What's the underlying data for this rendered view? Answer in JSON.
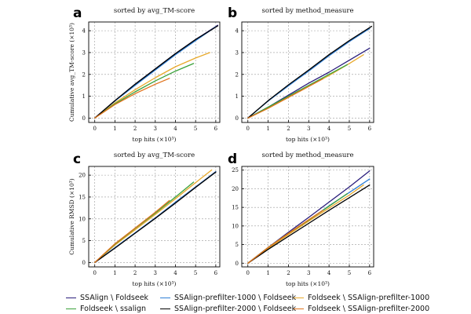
{
  "figure": {
    "legend": [
      {
        "name": "SSAlign \\ Foldseek",
        "color": "#2a1e7c"
      },
      {
        "name": "SSAlign-prefilter-1000 \\ Foldseek",
        "color": "#2f7fd6"
      },
      {
        "name": "Foldseek \\ SSAlign-prefilter-1000",
        "color": "#e8a92b"
      },
      {
        "name": "Foldseek \\ ssalign",
        "color": "#3aa13a"
      },
      {
        "name": "SSAlign-prefilter-2000 \\ Foldseek",
        "color": "#000000"
      },
      {
        "name": "Foldseek \\ SSAlign-prefilter-2000",
        "color": "#e0731c"
      }
    ]
  },
  "chart_data": [
    {
      "panel": "a",
      "type": "line",
      "title": "sorted by avg_TM-score",
      "xlabel": "top hits (×10³)",
      "ylabel": "Cumulative avg_TM-score (×10³)",
      "xlim": [
        -0.3,
        6.2
      ],
      "ylim": [
        -0.2,
        4.4
      ],
      "xticks": [
        0,
        1,
        2,
        3,
        4,
        5,
        6
      ],
      "yticks": [
        0,
        1,
        2,
        3,
        4
      ],
      "series": [
        {
          "name": "SSAlign \\ Foldseek",
          "color": "#2a1e7c",
          "x": [
            0,
            1,
            2,
            3,
            4,
            5,
            6.1
          ],
          "y": [
            0,
            0.8,
            1.55,
            2.25,
            2.95,
            3.6,
            4.25
          ]
        },
        {
          "name": "SSAlign-prefilter-1000 \\ Foldseek",
          "color": "#2f7fd6",
          "x": [
            0,
            1,
            2,
            3,
            4,
            5,
            6.0
          ],
          "y": [
            0,
            0.78,
            1.5,
            2.2,
            2.9,
            3.55,
            4.18
          ]
        },
        {
          "name": "Foldseek \\ SSAlign-prefilter-1000",
          "color": "#e8a92b",
          "x": [
            0,
            1,
            2,
            3,
            4,
            5,
            5.7
          ],
          "y": [
            0,
            0.7,
            1.3,
            1.85,
            2.35,
            2.75,
            3.0
          ]
        },
        {
          "name": "Foldseek \\ ssalign",
          "color": "#3aa13a",
          "x": [
            0,
            1,
            2,
            3,
            4,
            4.9
          ],
          "y": [
            0,
            0.65,
            1.2,
            1.7,
            2.15,
            2.5
          ]
        },
        {
          "name": "SSAlign-prefilter-2000 \\ Foldseek",
          "color": "#000000",
          "x": [
            0,
            1,
            2,
            3,
            4,
            5,
            6.1
          ],
          "y": [
            0,
            0.8,
            1.55,
            2.25,
            2.95,
            3.6,
            4.22
          ]
        },
        {
          "name": "Foldseek \\ SSAlign-prefilter-2000",
          "color": "#e0731c",
          "x": [
            0,
            1,
            2,
            3,
            3.7
          ],
          "y": [
            0,
            0.62,
            1.12,
            1.55,
            1.82
          ]
        }
      ]
    },
    {
      "panel": "b",
      "type": "line",
      "title": "sorted by method_measure",
      "xlabel": "top hits (×10³)",
      "ylabel": "",
      "xlim": [
        -0.3,
        6.2
      ],
      "ylim": [
        -0.2,
        4.4
      ],
      "xticks": [
        0,
        1,
        2,
        3,
        4,
        5,
        6
      ],
      "yticks": [
        0,
        1,
        2,
        3,
        4
      ],
      "series": [
        {
          "name": "SSAlign \\ Foldseek",
          "color": "#2a1e7c",
          "x": [
            0,
            1,
            2,
            3,
            4,
            5,
            6.0
          ],
          "y": [
            0,
            0.5,
            1.05,
            1.6,
            2.1,
            2.65,
            3.2
          ]
        },
        {
          "name": "SSAlign-prefilter-1000 \\ Foldseek",
          "color": "#2f7fd6",
          "x": [
            0,
            1,
            2,
            3,
            4,
            5,
            6.0
          ],
          "y": [
            0,
            0.78,
            1.48,
            2.15,
            2.85,
            3.5,
            4.1
          ]
        },
        {
          "name": "Foldseek \\ SSAlign-prefilter-1000",
          "color": "#e8a92b",
          "x": [
            0,
            1,
            2,
            3,
            4,
            5,
            5.7
          ],
          "y": [
            0,
            0.45,
            0.95,
            1.45,
            1.95,
            2.5,
            2.9
          ]
        },
        {
          "name": "Foldseek \\ ssalign",
          "color": "#3aa13a",
          "x": [
            0,
            1,
            2,
            3,
            4,
            4.9
          ],
          "y": [
            0,
            0.5,
            1.0,
            1.5,
            2.0,
            2.45
          ]
        },
        {
          "name": "SSAlign-prefilter-2000 \\ Foldseek",
          "color": "#000000",
          "x": [
            0,
            1,
            2,
            3,
            4,
            5,
            6.1
          ],
          "y": [
            0,
            0.8,
            1.52,
            2.2,
            2.9,
            3.55,
            4.2
          ]
        },
        {
          "name": "Foldseek \\ SSAlign-prefilter-2000",
          "color": "#e0731c",
          "x": [
            0,
            1,
            2,
            3,
            3.7
          ],
          "y": [
            0,
            0.45,
            0.95,
            1.45,
            1.8
          ]
        }
      ]
    },
    {
      "panel": "c",
      "type": "line",
      "title": "sorted by avg_TM-score",
      "xlabel": "top hits (×10³)",
      "ylabel": "Cumulative RMSD (×10³)",
      "xlim": [
        -0.3,
        6.2
      ],
      "ylim": [
        -1,
        22
      ],
      "xticks": [
        0,
        1,
        2,
        3,
        4,
        5,
        6
      ],
      "yticks": [
        0,
        5,
        10,
        15,
        20
      ],
      "series": [
        {
          "name": "SSAlign \\ Foldseek",
          "color": "#2a1e7c",
          "x": [
            0,
            1,
            2,
            3,
            4,
            5,
            6.0
          ],
          "y": [
            0,
            3.4,
            6.8,
            10.2,
            13.8,
            17.3,
            20.8
          ]
        },
        {
          "name": "SSAlign-prefilter-1000 \\ Foldseek",
          "color": "#2f7fd6",
          "x": [
            0,
            1,
            2,
            3,
            4,
            5,
            6.0
          ],
          "y": [
            0,
            3.4,
            6.8,
            10.2,
            13.8,
            17.3,
            20.8
          ]
        },
        {
          "name": "Foldseek \\ SSAlign-prefilter-1000",
          "color": "#e8a92b",
          "x": [
            0,
            1,
            2,
            3,
            4,
            5,
            5.8
          ],
          "y": [
            0,
            4.0,
            7.5,
            11.0,
            14.6,
            18.3,
            21.2
          ]
        },
        {
          "name": "Foldseek \\ ssalign",
          "color": "#3aa13a",
          "x": [
            0,
            1,
            2,
            3,
            4,
            4.9
          ],
          "y": [
            0,
            4.2,
            7.8,
            11.3,
            15.0,
            18.4
          ]
        },
        {
          "name": "SSAlign-prefilter-2000 \\ Foldseek",
          "color": "#000000",
          "x": [
            0,
            1,
            2,
            3,
            4,
            5,
            6.0
          ],
          "y": [
            0,
            3.3,
            6.7,
            10.1,
            13.6,
            17.2,
            20.7
          ]
        },
        {
          "name": "Foldseek \\ SSAlign-prefilter-2000",
          "color": "#e0731c",
          "x": [
            0,
            1,
            2,
            3,
            3.7
          ],
          "y": [
            0,
            4.3,
            7.9,
            11.5,
            14.2
          ]
        }
      ]
    },
    {
      "panel": "d",
      "type": "line",
      "title": "sorted by method_measure",
      "xlabel": "top hits (×10³)",
      "ylabel": "",
      "xlim": [
        -0.3,
        6.2
      ],
      "ylim": [
        -1,
        26
      ],
      "xticks": [
        0,
        1,
        2,
        3,
        4,
        5,
        6
      ],
      "yticks": [
        0,
        5,
        10,
        15,
        20,
        25
      ],
      "series": [
        {
          "name": "SSAlign \\ Foldseek",
          "color": "#2a1e7c",
          "x": [
            0,
            1,
            2,
            3,
            4,
            5,
            6.0
          ],
          "y": [
            0,
            4.2,
            8.3,
            12.3,
            16.4,
            20.5,
            24.8
          ]
        },
        {
          "name": "SSAlign-prefilter-1000 \\ Foldseek",
          "color": "#2f7fd6",
          "x": [
            0,
            1,
            2,
            3,
            4,
            5,
            6.0
          ],
          "y": [
            0,
            4.0,
            7.8,
            11.6,
            15.4,
            19.0,
            22.6
          ]
        },
        {
          "name": "Foldseek \\ SSAlign-prefilter-1000",
          "color": "#e8a92b",
          "x": [
            0,
            1,
            2,
            3,
            4,
            5,
            5.7
          ],
          "y": [
            0,
            4.0,
            7.7,
            11.3,
            14.8,
            18.3,
            21.0
          ]
        },
        {
          "name": "Foldseek \\ ssalign",
          "color": "#3aa13a",
          "x": [
            0,
            1,
            2,
            3,
            4,
            4.9
          ],
          "y": [
            0,
            4.2,
            8.0,
            11.6,
            15.3,
            18.7
          ]
        },
        {
          "name": "SSAlign-prefilter-2000 \\ Foldseek",
          "color": "#000000",
          "x": [
            0,
            1,
            2,
            3,
            4,
            5,
            6.0
          ],
          "y": [
            0,
            3.7,
            7.2,
            10.7,
            14.2,
            17.6,
            21.0
          ]
        },
        {
          "name": "Foldseek \\ SSAlign-prefilter-2000",
          "color": "#e0731c",
          "x": [
            0,
            1,
            2,
            3,
            3.7
          ],
          "y": [
            0,
            4.2,
            8.0,
            11.7,
            14.2
          ]
        }
      ]
    }
  ]
}
